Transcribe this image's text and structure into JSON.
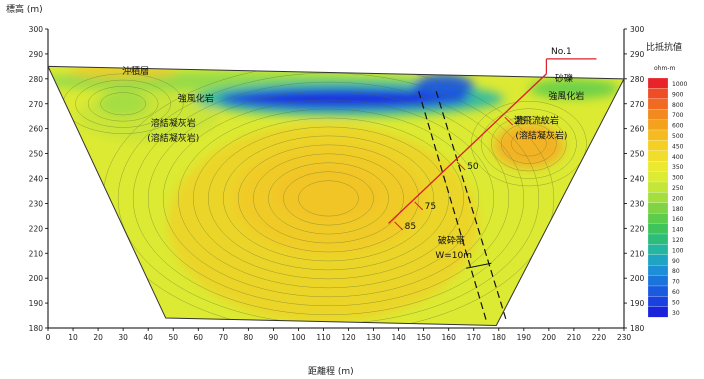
{
  "chart_data": {
    "type": "heatmap",
    "title": "",
    "ylabel": "標高 (m)",
    "xlabel": "距離程 (m)",
    "xlim": [
      0,
      230
    ],
    "ylim": [
      180,
      300
    ],
    "xticks": [
      0,
      10,
      20,
      30,
      40,
      50,
      60,
      70,
      80,
      90,
      100,
      110,
      120,
      130,
      140,
      150,
      160,
      170,
      180,
      190,
      200,
      210,
      220,
      230
    ],
    "yticks": [
      180,
      190,
      200,
      210,
      220,
      230,
      240,
      250,
      260,
      270,
      280,
      290,
      300
    ],
    "section_outline": [
      [
        0,
        285
      ],
      [
        230,
        280
      ],
      [
        179,
        181
      ],
      [
        47,
        184
      ]
    ],
    "colorbar": {
      "title": "比抵抗値",
      "unit": "ohm-m",
      "values": [
        1000,
        900,
        800,
        700,
        600,
        500,
        450,
        400,
        350,
        300,
        250,
        200,
        180,
        160,
        140,
        120,
        100,
        90,
        80,
        70,
        60,
        50,
        30
      ],
      "colors": [
        "#e8242a",
        "#ee4d26",
        "#f06a22",
        "#f28a1f",
        "#f4a21e",
        "#f6bb20",
        "#f4cf24",
        "#f1dd2b",
        "#ecea30",
        "#dceb33",
        "#c4e638",
        "#a4df3e",
        "#7fd445",
        "#5ccc4c",
        "#3ec45a",
        "#2cbe79",
        "#24b6a0",
        "#1fa4c2",
        "#1c8fd6",
        "#1a74dc",
        "#1a5ade",
        "#1a41e0",
        "#1a23da"
      ]
    },
    "annotations": [
      {
        "text": "沖積層",
        "x": 35,
        "y": 282
      },
      {
        "text": "強風化岩",
        "x": 59,
        "y": 271
      },
      {
        "text": "溶結凝灰岩",
        "x": 50,
        "y": 261
      },
      {
        "text": "(溶結凝灰岩)",
        "x": 50,
        "y": 255
      },
      {
        "text": "砂礫",
        "x": 206,
        "y": 279
      },
      {
        "text": "強風化岩",
        "x": 207,
        "y": 272
      },
      {
        "text": "濃飛流紋岩",
        "x": 195,
        "y": 262
      },
      {
        "text": "(溶結凝灰岩)",
        "x": 197,
        "y": 256
      },
      {
        "text": "破砕帯",
        "x": 161,
        "y": 214
      },
      {
        "text": "W=10m",
        "x": 162,
        "y": 208
      },
      {
        "text": "No.1",
        "x": 205,
        "y": 290
      }
    ],
    "borehole": {
      "name": "No.1",
      "path": [
        [
          199,
          282
        ],
        [
          136,
          222
        ]
      ],
      "depth_marks": [
        {
          "label": "25",
          "x": 184,
          "y": 263
        },
        {
          "label": "50",
          "x": 165,
          "y": 245
        },
        {
          "label": "75",
          "x": 148,
          "y": 229
        },
        {
          "label": "85",
          "x": 140,
          "y": 221
        }
      ]
    },
    "fault_lines": [
      [
        [
          148,
          275
        ],
        [
          175,
          183
        ]
      ],
      [
        [
          155,
          275
        ],
        [
          183,
          183
        ]
      ]
    ],
    "grid": false,
    "legend_position": "right"
  }
}
